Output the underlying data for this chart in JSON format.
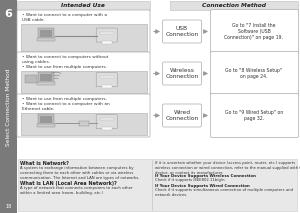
{
  "bg_color": "#ffffff",
  "sidebar_color": "#7a7a7a",
  "sidebar_text": "Select Connection Method",
  "sidebar_number": "6",
  "page_number": "18",
  "header_intended": "Intended Use",
  "header_connection": "Connection Method",
  "rows": [
    {
      "intended_bullets": [
        "Want to connect to a computer with a\nUSB cable."
      ],
      "image_type": "usb",
      "connection_label": "USB\nConnection",
      "goto_text": "Go to \"7 Install the\nSoftware (USB\nConnection)\" on page 19."
    },
    {
      "intended_bullets": [
        "Want to connect to computers without\nusing cables.",
        "Want to use from multiple computers."
      ],
      "image_type": "wireless",
      "connection_label": "Wireless\nConnection",
      "goto_text": "Go to \"8 Wireless Setup\"\non page 24."
    },
    {
      "intended_bullets": [
        "Want to use from multiple computers.",
        "Want to connect to a computer with an\nEthernet cable."
      ],
      "image_type": "wired",
      "connection_label": "Wired\nConnection",
      "goto_text": "Go to \"9 Wired Setup\" on\npage 32."
    }
  ],
  "bottom_left_title1": "What is Network?",
  "bottom_left_body1": "A system to exchange information between computers by\nconnecting them to each other with cables or via wireless\ncommunication. The Internet and LAN are types of networks.",
  "bottom_left_title2": "What is LAN (Local Area Network)?",
  "bottom_left_body2": "A type of network that connects computers to each other\nwithin a limited area (room, building, etc.)",
  "bottom_right_text1": "If it is uncertain whether your device (access point, router, etc.) supports\nwireless connection or wired connection, refer to the manual supplied with the\ndevice, or contact its manufacturer.",
  "bottom_right_bold1": "If Your Device Supports Wireless Connection",
  "bottom_right_body1": "Check if it supports IEEE802.11b/g/n.",
  "bottom_right_bold2": "If Your Device Supports Wired Connection",
  "bottom_right_body2": "Check if it supports simultaneous connection of multiple computers and\nnetwork devices.",
  "intended_fill": "#ffffff",
  "intended_edge": "#aaaaaa",
  "conn_fill": "#ffffff",
  "conn_edge": "#aaaaaa",
  "goto_fill": "#ffffff",
  "goto_edge": "#aaaaaa",
  "bottom_fill": "#e8e8e8",
  "bottom_edge": "#cccccc",
  "arrow_color": "#999999",
  "image_fill": "#d8d8d8",
  "image_edge": "#aaaaaa"
}
